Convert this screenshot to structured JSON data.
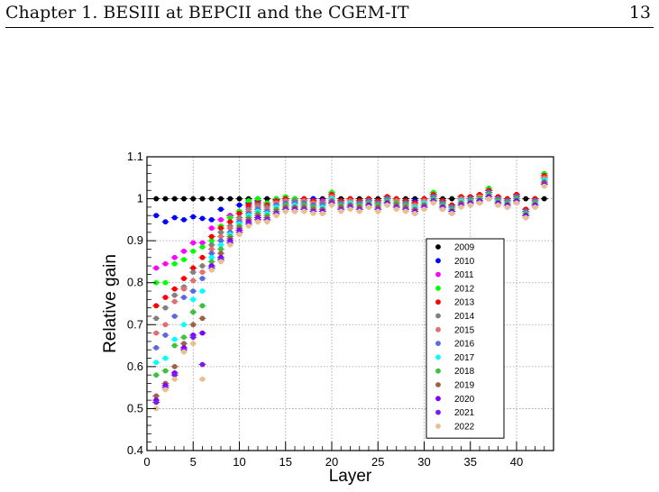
{
  "header": {
    "left": "Chapter 1.  BESIII at BEPCII and the CGEM-IT",
    "page_number": "13"
  },
  "chart_data": {
    "type": "scatter",
    "title": "",
    "xlabel": "Layer",
    "ylabel": "Relative gain",
    "xlim": [
      0,
      44
    ],
    "ylim": [
      0.4,
      1.1
    ],
    "x_ticks": [
      "0",
      "5",
      "10",
      "15",
      "20",
      "25",
      "30",
      "35",
      "40"
    ],
    "y_ticks": [
      "0.4",
      "0.5",
      "0.6",
      "0.7",
      "0.8",
      "0.9",
      "1",
      "1.1"
    ],
    "grid": true,
    "legend_position": "right-middle",
    "x": [
      1,
      2,
      3,
      4,
      5,
      6,
      7,
      8,
      9,
      10,
      11,
      12,
      13,
      14,
      15,
      16,
      17,
      18,
      19,
      20,
      21,
      22,
      23,
      24,
      25,
      26,
      27,
      28,
      29,
      30,
      31,
      32,
      33,
      34,
      35,
      36,
      37,
      38,
      39,
      40,
      41,
      42,
      43
    ],
    "series": [
      {
        "name": "2009",
        "color": "#000000",
        "values": [
          1,
          1,
          1,
          1,
          1,
          1,
          1,
          1,
          1,
          1,
          1,
          1,
          1,
          1,
          1,
          1,
          1,
          1,
          1,
          1,
          1,
          1,
          1,
          1,
          1,
          1,
          1,
          1,
          1,
          1,
          1,
          1,
          1,
          1,
          1,
          1,
          1,
          1,
          1,
          1,
          1,
          1,
          1
        ]
      },
      {
        "name": "2010",
        "color": "#0000ff",
        "values": [
          0.96,
          0.945,
          0.955,
          0.95,
          0.957,
          0.953,
          0.95,
          0.975,
          0.96,
          0.985,
          0.99,
          0.995,
          0.99,
          0.998,
          1.0,
          0.995,
          0.995,
          1.0,
          0.99,
          1.005,
          0.995,
          1.0,
          0.995,
          1.0,
          0.995,
          1.005,
          1.0,
          0.995,
          0.995,
          1.0,
          1.01,
          0.995,
          0.985,
          1.0,
          1.0,
          1.005,
          1.02,
          1.0,
          1.0,
          1.01,
          0.97,
          1.0,
          1.05
        ]
      },
      {
        "name": "2011",
        "color": "#ff00ff",
        "values": [
          0.835,
          0.845,
          0.86,
          0.875,
          0.895,
          0.895,
          0.93,
          0.95,
          0.96,
          0.97,
          0.98,
          0.985,
          0.99,
          0.995,
          0.995,
          1.0,
          1.0,
          0.995,
          0.995,
          1.015,
          0.995,
          1.0,
          0.995,
          1.0,
          0.995,
          1.005,
          1.0,
          0.995,
          0.99,
          1.0,
          1.015,
          0.995,
          0.985,
          1.005,
          1.005,
          1.01,
          1.025,
          1.005,
          1.0,
          1.01,
          0.975,
          1.0,
          1.06
        ]
      },
      {
        "name": "2012",
        "color": "#00ff00",
        "values": [
          0.8,
          0.8,
          0.845,
          0.855,
          0.875,
          0.885,
          0.9,
          0.935,
          0.955,
          0.97,
          0.995,
          1.0,
          0.99,
          1.0,
          1.005,
          1.0,
          1.0,
          0.995,
          0.99,
          1.015,
          0.995,
          1.0,
          0.995,
          1.0,
          0.995,
          1.005,
          1.0,
          0.995,
          0.99,
          1.0,
          1.015,
          0.995,
          0.985,
          1.005,
          1.005,
          1.01,
          1.025,
          1.005,
          1.0,
          1.01,
          0.975,
          1.0,
          1.06
        ]
      },
      {
        "name": "2013",
        "color": "#ff0000",
        "values": [
          0.745,
          0.765,
          0.785,
          0.81,
          0.835,
          0.86,
          0.91,
          0.93,
          0.945,
          0.965,
          0.985,
          0.99,
          0.985,
          0.995,
          1.0,
          0.995,
          1.0,
          0.995,
          0.99,
          1.01,
          0.995,
          1.0,
          0.995,
          1.0,
          0.995,
          1.005,
          1.0,
          0.995,
          0.99,
          1.0,
          1.01,
          0.995,
          0.985,
          1.005,
          1.005,
          1.01,
          1.02,
          1.005,
          1.0,
          1.01,
          0.975,
          1.0,
          1.055
        ]
      },
      {
        "name": "2014",
        "color": "#808080",
        "values": [
          0.715,
          0.74,
          0.77,
          0.79,
          0.825,
          0.84,
          0.89,
          0.92,
          0.935,
          0.955,
          0.975,
          0.985,
          0.98,
          0.99,
          0.995,
          0.995,
          0.995,
          0.99,
          0.99,
          1.005,
          0.99,
          0.995,
          0.99,
          0.995,
          0.99,
          1.0,
          0.995,
          0.99,
          0.985,
          0.995,
          1.005,
          0.99,
          0.98,
          1.0,
          1.0,
          1.005,
          1.015,
          1.0,
          0.995,
          1.005,
          0.97,
          0.995,
          1.05
        ]
      },
      {
        "name": "2015",
        "color": "#e07070",
        "values": [
          0.68,
          0.7,
          0.755,
          0.785,
          0.805,
          0.825,
          0.88,
          0.91,
          0.93,
          0.95,
          0.97,
          0.98,
          0.975,
          0.99,
          0.995,
          0.99,
          0.995,
          0.99,
          0.985,
          1.005,
          0.99,
          0.995,
          0.99,
          0.995,
          0.99,
          1.0,
          0.995,
          0.99,
          0.985,
          0.995,
          1.005,
          0.99,
          0.98,
          1.0,
          1.0,
          1.005,
          1.015,
          1.0,
          0.995,
          1.005,
          0.97,
          0.995,
          1.05
        ]
      },
      {
        "name": "2016",
        "color": "#5a6ad8",
        "values": [
          0.645,
          0.675,
          0.72,
          0.765,
          0.78,
          0.81,
          0.87,
          0.9,
          0.92,
          0.945,
          0.965,
          0.975,
          0.97,
          0.985,
          0.99,
          0.99,
          0.99,
          0.985,
          0.985,
          1.0,
          0.99,
          0.99,
          0.99,
          0.995,
          0.99,
          1.0,
          0.99,
          0.99,
          0.98,
          0.99,
          1.005,
          0.99,
          0.98,
          0.995,
          1.0,
          1.0,
          1.015,
          1.0,
          0.995,
          1.005,
          0.97,
          0.995,
          1.045
        ]
      },
      {
        "name": "2017",
        "color": "#00ffff",
        "values": [
          0.61,
          0.62,
          0.665,
          0.7,
          0.76,
          0.78,
          0.86,
          0.89,
          0.915,
          0.94,
          0.96,
          0.97,
          0.965,
          0.98,
          0.985,
          0.985,
          0.985,
          0.98,
          0.98,
          1.0,
          0.985,
          0.99,
          0.985,
          0.99,
          0.985,
          0.995,
          0.99,
          0.985,
          0.98,
          0.99,
          1.0,
          0.985,
          0.975,
          0.995,
          0.995,
          1.0,
          1.01,
          0.995,
          0.99,
          1.0,
          0.965,
          0.99,
          1.045
        ]
      },
      {
        "name": "2018",
        "color": "#40c040",
        "values": [
          0.58,
          0.59,
          0.65,
          0.67,
          0.73,
          0.745,
          0.85,
          0.88,
          0.91,
          0.935,
          0.955,
          0.965,
          0.96,
          0.975,
          0.985,
          0.98,
          0.985,
          0.98,
          0.975,
          0.995,
          0.985,
          0.985,
          0.985,
          0.99,
          0.985,
          0.995,
          0.99,
          0.985,
          0.975,
          0.985,
          1.0,
          0.985,
          0.975,
          0.99,
          0.995,
          1.0,
          1.01,
          0.995,
          0.99,
          1.0,
          0.965,
          0.99,
          1.04
        ]
      },
      {
        "name": "2019",
        "color": "#a06048",
        "values": [
          0.53,
          0.56,
          0.6,
          0.655,
          0.7,
          0.715,
          0.84,
          0.87,
          0.905,
          0.93,
          0.95,
          0.96,
          0.955,
          0.97,
          0.98,
          0.98,
          0.98,
          0.975,
          0.975,
          0.995,
          0.98,
          0.985,
          0.98,
          0.985,
          0.98,
          0.99,
          0.985,
          0.98,
          0.975,
          0.985,
          0.995,
          0.98,
          0.97,
          0.99,
          0.99,
          0.995,
          1.005,
          0.99,
          0.985,
          0.995,
          0.96,
          0.985,
          1.04
        ]
      },
      {
        "name": "2020",
        "color": "#8000ff",
        "values": [
          0.52,
          0.555,
          0.585,
          0.645,
          0.675,
          0.68,
          0.84,
          0.86,
          0.9,
          0.925,
          0.945,
          0.955,
          0.95,
          0.965,
          0.975,
          0.975,
          0.975,
          0.97,
          0.97,
          0.99,
          0.975,
          0.98,
          0.975,
          0.985,
          0.975,
          0.99,
          0.98,
          0.975,
          0.97,
          0.98,
          0.995,
          0.98,
          0.97,
          0.985,
          0.99,
          0.995,
          1.005,
          0.99,
          0.985,
          0.995,
          0.96,
          0.985,
          1.035
        ]
      },
      {
        "name": "2021",
        "color": "#7a1cf0",
        "values": [
          0.515,
          0.55,
          0.58,
          0.64,
          0.67,
          0.605,
          0.835,
          0.855,
          0.895,
          0.92,
          0.94,
          0.95,
          0.95,
          0.965,
          0.975,
          0.97,
          0.975,
          0.97,
          0.965,
          0.99,
          0.975,
          0.98,
          0.975,
          0.98,
          0.975,
          0.985,
          0.98,
          0.975,
          0.965,
          0.98,
          0.995,
          0.975,
          0.965,
          0.985,
          0.985,
          0.99,
          1.0,
          0.985,
          0.98,
          0.99,
          0.955,
          0.98,
          1.035
        ]
      },
      {
        "name": "2022",
        "color": "#e8c090",
        "values": [
          0.5,
          0.545,
          0.57,
          0.635,
          0.655,
          0.57,
          0.83,
          0.85,
          0.89,
          0.915,
          0.935,
          0.945,
          0.945,
          0.96,
          0.97,
          0.97,
          0.97,
          0.965,
          0.965,
          0.985,
          0.97,
          0.975,
          0.97,
          0.98,
          0.97,
          0.985,
          0.975,
          0.97,
          0.965,
          0.975,
          0.99,
          0.975,
          0.965,
          0.98,
          0.985,
          0.99,
          1.0,
          0.985,
          0.98,
          0.99,
          0.955,
          0.98,
          1.03
        ]
      }
    ]
  }
}
